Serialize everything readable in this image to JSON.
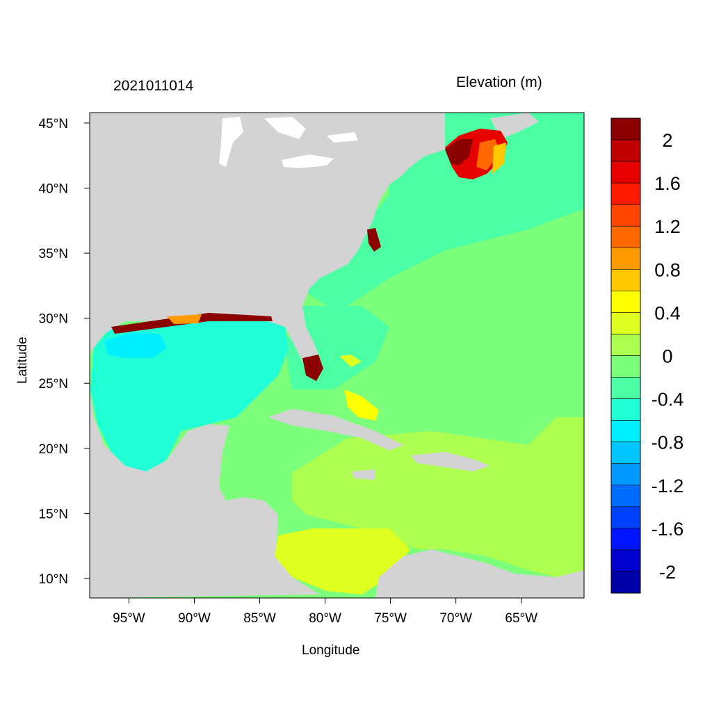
{
  "map": {
    "left_title": "2021011014",
    "right_title": "Elevation (m)",
    "x_axis_title": "Longitude",
    "y_axis_title": "Latitude",
    "lon_range": [
      -98,
      -60.2
    ],
    "lat_range": [
      8.5,
      45.8
    ],
    "lon_ticks": [
      {
        "value": -95,
        "label": "95°W"
      },
      {
        "value": -90,
        "label": "90°W"
      },
      {
        "value": -85,
        "label": "85°W"
      },
      {
        "value": -80,
        "label": "80°W"
      },
      {
        "value": -75,
        "label": "75°W"
      },
      {
        "value": -70,
        "label": "70°W"
      },
      {
        "value": -65,
        "label": "65°W"
      }
    ],
    "lat_ticks": [
      {
        "value": 45,
        "label": "45°N"
      },
      {
        "value": 40,
        "label": "40°N"
      },
      {
        "value": 35,
        "label": "35°N"
      },
      {
        "value": 30,
        "label": "30°N"
      },
      {
        "value": 25,
        "label": "25°N"
      },
      {
        "value": 20,
        "label": "20°N"
      },
      {
        "value": 15,
        "label": "15°N"
      },
      {
        "value": 10,
        "label": "10°N"
      }
    ],
    "land_color": "#d3d3d3"
  },
  "colorbar": {
    "colors_top_to_bottom": [
      "#8b0000",
      "#c00000",
      "#e60000",
      "#ff1a00",
      "#ff4500",
      "#ff6a00",
      "#ff9a00",
      "#ffc800",
      "#ffff00",
      "#dfff20",
      "#adff4f",
      "#7cff7a",
      "#4cffa5",
      "#20ffd5",
      "#00f0ff",
      "#00c4ff",
      "#0098ff",
      "#006cff",
      "#0040ff",
      "#0014ff",
      "#0000d0",
      "#0000a8"
    ],
    "labels": [
      "2",
      "1.6",
      "1.2",
      "0.8",
      "0.4",
      "0",
      "-0.4",
      "-0.8",
      "-1.2",
      "-1.6",
      "-2"
    ]
  }
}
